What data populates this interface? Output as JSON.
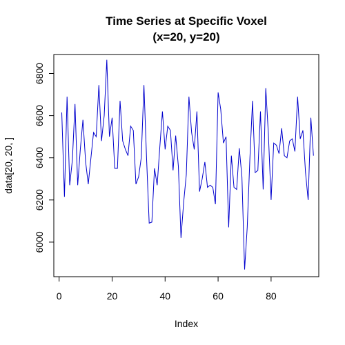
{
  "chart_data": {
    "type": "line",
    "title": [
      "Time Series at Specific Voxel",
      "(x=20, y=20)"
    ],
    "xlabel": "Index",
    "ylabel": "data[20, 20, ]",
    "xlim": [
      -2,
      98
    ],
    "ylim": [
      5836,
      6890
    ],
    "xticks": [
      0,
      20,
      40,
      60,
      80
    ],
    "yticks": [
      6000,
      6200,
      6400,
      6600,
      6800
    ],
    "grid": false,
    "legend": "none",
    "series_color": "#0000CD",
    "x": [
      1,
      2,
      3,
      4,
      5,
      6,
      7,
      8,
      9,
      10,
      11,
      12,
      13,
      14,
      15,
      16,
      17,
      18,
      19,
      20,
      21,
      22,
      23,
      24,
      25,
      26,
      27,
      28,
      29,
      30,
      31,
      32,
      33,
      34,
      35,
      36,
      37,
      38,
      39,
      40,
      41,
      42,
      43,
      44,
      45,
      46,
      47,
      48,
      49,
      50,
      51,
      52,
      53,
      54,
      55,
      56,
      57,
      58,
      59,
      60,
      61,
      62,
      63,
      64,
      65,
      66,
      67,
      68,
      69,
      70,
      71,
      72,
      73,
      74,
      75,
      76,
      77,
      78,
      79,
      80,
      81,
      82,
      83,
      84,
      85,
      86,
      87,
      88,
      89,
      90,
      91,
      92,
      93,
      94,
      95,
      96
    ],
    "y": [
      6615,
      6215,
      6690,
      6270,
      6390,
      6655,
      6270,
      6440,
      6580,
      6380,
      6275,
      6400,
      6520,
      6500,
      6745,
      6480,
      6600,
      6865,
      6500,
      6590,
      6350,
      6350,
      6670,
      6480,
      6440,
      6410,
      6550,
      6530,
      6275,
      6310,
      6400,
      6745,
      6400,
      6090,
      6095,
      6350,
      6270,
      6450,
      6620,
      6440,
      6550,
      6530,
      6340,
      6505,
      6360,
      6020,
      6190,
      6320,
      6690,
      6520,
      6440,
      6620,
      6240,
      6300,
      6380,
      6260,
      6270,
      6260,
      6180,
      6710,
      6630,
      6470,
      6500,
      6070,
      6410,
      6260,
      6250,
      6445,
      6310,
      5870,
      6070,
      6400,
      6670,
      6330,
      6340,
      6620,
      6250,
      6730,
      6510,
      6200,
      6470,
      6460,
      6420,
      6540,
      6410,
      6400,
      6480,
      6490,
      6430,
      6690,
      6490,
      6530,
      6330,
      6200,
      6590,
      6410
    ]
  }
}
